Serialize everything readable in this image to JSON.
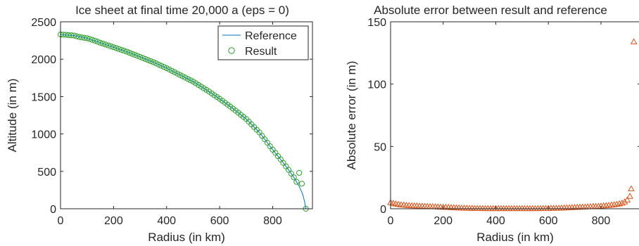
{
  "chart_data": [
    {
      "type": "line",
      "title": "Ice sheet at final time 20,000 a (eps = 0)",
      "xlabel": "Radius (in km)",
      "ylabel": "Altitude (in m)",
      "xlim": [
        0,
        950
      ],
      "ylim": [
        0,
        2500
      ],
      "xticks": [
        0,
        200,
        400,
        600,
        800
      ],
      "yticks": [
        0,
        500,
        1000,
        1500,
        2000,
        2500
      ],
      "grid": false,
      "legend": "top-right",
      "series": [
        {
          "name": "Reference",
          "kind": "line",
          "color": "#0072bd",
          "x": [
            0,
            50,
            100,
            150,
            200,
            250,
            300,
            350,
            400,
            450,
            500,
            550,
            600,
            650,
            700,
            750,
            800,
            830,
            860,
            880,
            900,
            910,
            915,
            920,
            925
          ],
          "y": [
            2330,
            2316,
            2280,
            2220,
            2160,
            2100,
            2030,
            1960,
            1880,
            1790,
            1700,
            1590,
            1470,
            1340,
            1200,
            1020,
            790,
            660,
            520,
            420,
            300,
            220,
            170,
            100,
            0
          ]
        },
        {
          "name": "Result",
          "kind": "scatter",
          "marker": "circle",
          "color": "#2ca02c",
          "x": [
            0,
            10,
            20,
            30,
            40,
            50,
            60,
            70,
            80,
            90,
            100,
            110,
            120,
            130,
            140,
            150,
            160,
            170,
            180,
            190,
            200,
            210,
            220,
            230,
            240,
            250,
            260,
            270,
            280,
            290,
            300,
            310,
            320,
            330,
            340,
            350,
            360,
            370,
            380,
            390,
            400,
            410,
            420,
            430,
            440,
            450,
            460,
            470,
            480,
            490,
            500,
            510,
            520,
            530,
            540,
            550,
            560,
            570,
            580,
            590,
            600,
            610,
            620,
            630,
            640,
            650,
            660,
            670,
            680,
            690,
            700,
            710,
            720,
            730,
            740,
            750,
            760,
            770,
            780,
            790,
            800,
            810,
            820,
            830,
            840,
            850,
            860,
            870,
            880,
            890,
            900,
            910,
            925
          ],
          "y": [
            2330,
            2328,
            2326,
            2322,
            2319,
            2316,
            2306,
            2298,
            2291,
            2285,
            2280,
            2270,
            2258,
            2246,
            2233,
            2220,
            2208,
            2196,
            2184,
            2172,
            2160,
            2148,
            2136,
            2124,
            2112,
            2100,
            2086,
            2072,
            2058,
            2044,
            2030,
            2016,
            2002,
            1988,
            1974,
            1960,
            1944,
            1928,
            1912,
            1896,
            1880,
            1862,
            1844,
            1826,
            1808,
            1790,
            1772,
            1754,
            1736,
            1718,
            1700,
            1678,
            1656,
            1634,
            1612,
            1590,
            1566,
            1542,
            1518,
            1494,
            1470,
            1444,
            1418,
            1392,
            1366,
            1340,
            1312,
            1284,
            1256,
            1228,
            1200,
            1164,
            1128,
            1092,
            1056,
            1020,
            974,
            928,
            882,
            836,
            790,
            747,
            703,
            660,
            613,
            567,
            520,
            470,
            420,
            360,
            480,
            335,
            0
          ]
        }
      ]
    },
    {
      "type": "scatter",
      "title": "Absolute error between result and reference",
      "xlabel": "Radius (in km)",
      "ylabel": "Absolute error (in m)",
      "xlim": [
        0,
        950
      ],
      "ylim": [
        0,
        150
      ],
      "xticks": [
        0,
        200,
        400,
        600,
        800
      ],
      "yticks": [
        0,
        50,
        100,
        150
      ],
      "grid": false,
      "series": [
        {
          "marker": "triangle",
          "color": "#d95319",
          "x": [
            0,
            10,
            20,
            30,
            40,
            50,
            60,
            70,
            80,
            90,
            100,
            110,
            120,
            130,
            140,
            150,
            160,
            170,
            180,
            190,
            200,
            210,
            220,
            230,
            240,
            250,
            260,
            270,
            280,
            290,
            300,
            310,
            320,
            330,
            340,
            350,
            360,
            370,
            380,
            390,
            400,
            410,
            420,
            430,
            440,
            450,
            460,
            470,
            480,
            490,
            500,
            510,
            520,
            530,
            540,
            550,
            560,
            570,
            580,
            590,
            600,
            610,
            620,
            630,
            640,
            650,
            660,
            670,
            680,
            690,
            700,
            710,
            720,
            730,
            740,
            750,
            760,
            770,
            780,
            790,
            800,
            810,
            820,
            830,
            840,
            850,
            860,
            870,
            880,
            890,
            900,
            910,
            915,
            925
          ],
          "y": [
            5,
            4.4,
            3.9,
            3.5,
            3.2,
            3.0,
            2.8,
            2.6,
            2.5,
            2.4,
            2.3,
            2.2,
            2.1,
            2.0,
            1.9,
            1.8,
            1.7,
            1.6,
            1.5,
            1.4,
            1.3,
            1.2,
            1.1,
            1.0,
            0.9,
            0.8,
            0.7,
            0.6,
            0.5,
            0.5,
            0.4,
            0.4,
            0.3,
            0.3,
            0.3,
            0.2,
            0.2,
            0.2,
            0.2,
            0.2,
            0.2,
            0.2,
            0.2,
            0.2,
            0.2,
            0.2,
            0.2,
            0.2,
            0.2,
            0.2,
            0.2,
            0.2,
            0.2,
            0.2,
            0.2,
            0.2,
            0.2,
            0.2,
            0.3,
            0.3,
            0.3,
            0.4,
            0.4,
            0.5,
            0.5,
            0.6,
            0.7,
            0.8,
            0.9,
            1.0,
            1.1,
            1.2,
            1.3,
            1.4,
            1.5,
            1.6,
            1.7,
            1.8,
            1.9,
            2.0,
            2.2,
            2.4,
            2.6,
            2.8,
            3.0,
            3.3,
            3.6,
            4.0,
            4.5,
            5.5,
            7.0,
            10.0,
            16.0,
            134.0
          ]
        }
      ]
    }
  ]
}
